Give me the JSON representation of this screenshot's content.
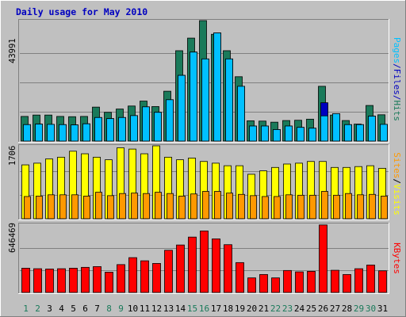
{
  "chart_data": {
    "type": "bar",
    "title": "Daily usage for May 2010",
    "categories": [
      "1",
      "2",
      "3",
      "4",
      "5",
      "6",
      "7",
      "8",
      "9",
      "10",
      "11",
      "12",
      "13",
      "14",
      "15",
      "16",
      "17",
      "18",
      "19",
      "20",
      "21",
      "22",
      "23",
      "24",
      "25",
      "26",
      "27",
      "28",
      "29",
      "30",
      "31"
    ],
    "weekend_days": [
      "1",
      "2",
      "8",
      "9",
      "15",
      "16",
      "22",
      "23",
      "29",
      "30"
    ],
    "colors": {
      "hits": "#1a7a5a",
      "files": "#00a8e8",
      "pages": "#00c0ff",
      "visits": "#ffff00",
      "sites": "#ff9900",
      "kbytes": "#ff0000",
      "weekday_label": "#000000",
      "weekend_label": "#1a7a5a",
      "title": "#0000c0",
      "plot_bg": "#c0c0c0",
      "frame_bg": "#c0c0c0"
    },
    "panels": {
      "hits": {
        "max_label": "43991",
        "max": 43991,
        "series": [
          {
            "name": "Hits",
            "values": [
              9000,
              9500,
              9500,
              9000,
              8900,
              9000,
              12400,
              10500,
              11700,
              12800,
              14600,
              12600,
              18200,
              33000,
              37600,
              43991,
              39000,
              33000,
              23500,
              7400,
              7300,
              6900,
              7500,
              7600,
              8000,
              20000,
              9500,
              7500,
              6200,
              13000,
              9600
            ]
          },
          {
            "name": "Files",
            "values": [
              6000,
              6200,
              6100,
              6000,
              5900,
              6300,
              8600,
              8200,
              8600,
              9300,
              12500,
              10500,
              15100,
              24000,
              32500,
              30000,
              39500,
              30000,
              20000,
              5500,
              5500,
              4200,
              5500,
              5000,
              4700,
              14000,
              10000,
              6000,
              6000,
              9100,
              6100
            ]
          },
          {
            "name": "Pages",
            "values": [
              6000,
              6200,
              6100,
              6000,
              5900,
              6300,
              8600,
              8200,
              8600,
              9300,
              12500,
              10500,
              15100,
              24000,
              32500,
              30000,
              39500,
              30000,
              20000,
              5500,
              5500,
              4200,
              5500,
              5000,
              4700,
              9200,
              10000,
              6000,
              6000,
              9100,
              6100
            ]
          }
        ],
        "label_parts": [
          "Pages",
          "/",
          "Files",
          "/",
          "Hits"
        ]
      },
      "visits": {
        "max_label": "1706",
        "max": 1706,
        "series": [
          {
            "name": "Visits",
            "values": [
              1260,
              1300,
              1400,
              1440,
              1580,
              1520,
              1440,
              1380,
              1660,
              1630,
              1520,
              1706,
              1440,
              1380,
              1420,
              1340,
              1300,
              1240,
              1240,
              1040,
              1120,
              1200,
              1280,
              1300,
              1340,
              1340,
              1200,
              1200,
              1220,
              1240,
              1180
            ]
          },
          {
            "name": "Sites",
            "values": [
              520,
              530,
              560,
              560,
              560,
              530,
              620,
              540,
              590,
              600,
              590,
              620,
              590,
              530,
              580,
              640,
              640,
              600,
              570,
              540,
              520,
              520,
              560,
              550,
              550,
              640,
              550,
              590,
              560,
              570,
              530
            ]
          }
        ],
        "label_parts": [
          "Sites",
          "/",
          "Visits"
        ]
      },
      "kbytes": {
        "max_label": "646469",
        "max": 646469,
        "series": [
          {
            "name": "KBytes",
            "values": [
              230000,
              225000,
              222000,
              225000,
              230000,
              238000,
              245000,
              192000,
              264000,
              330000,
              300000,
              275000,
              400000,
              450000,
              525000,
              583000,
              508000,
              453000,
              283000,
              138000,
              170000,
              138000,
              208000,
              195000,
              200000,
              640000,
              210000,
              170000,
              225000,
              260000,
              205000
            ]
          }
        ],
        "label_parts": [
          "KBytes"
        ]
      }
    }
  }
}
